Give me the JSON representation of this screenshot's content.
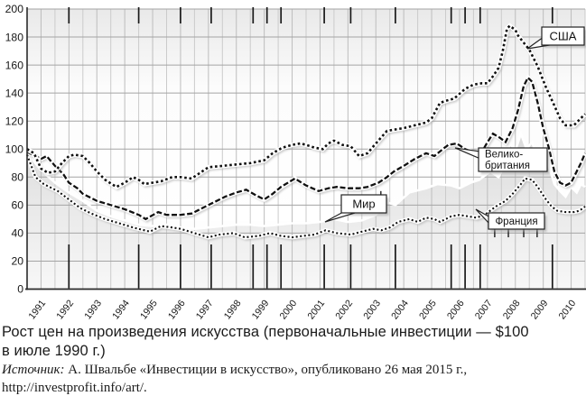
{
  "page": {
    "background": "#ffffff"
  },
  "caption": {
    "line1": "Рост цен на произведения искусства (первоначальные инвестиции — $100",
    "line2": "в июле 1990 г.)"
  },
  "source": {
    "label": "Источник:",
    "text": " А. Швальбе «Инвестиции в искусство», опубликовано 26 мая 2015 г.,",
    "url": "http://investprofit.info/art/."
  },
  "chart_data": {
    "type": "line",
    "title": "Рост цен на произведения искусства (первоначальные инвестиции — $100 в июле 1990 г.)",
    "xlabel": "",
    "ylabel": "",
    "x_unit": "year",
    "xlim": [
      1990.5,
      2010.5
    ],
    "ylim": [
      0,
      200
    ],
    "grid": "on",
    "legend_position": "inline-callouts",
    "y_ticks": [
      0,
      20,
      40,
      60,
      80,
      100,
      120,
      140,
      160,
      180,
      200
    ],
    "x_tick_labels": [
      "1991",
      "1992",
      "1993",
      "1994",
      "1995",
      "1996",
      "1997",
      "1998",
      "1999",
      "2000",
      "2001",
      "2002",
      "2003",
      "2004",
      "2005",
      "2006",
      "2007",
      "2008",
      "2009",
      "2010"
    ],
    "colors": {
      "line": "#111111",
      "line_casing": "#ffffff",
      "shadow": "#9a9a9a",
      "area_fill_top": "#d9d9d9",
      "area_fill_bottom": "#f8f8f8",
      "grid_minor": "#cbcbcb",
      "grid_year": "#bdbdbd",
      "grid_horizontal": "#a4a4a4",
      "axis": "#2a2a2a",
      "plot_bg_top": "#e9e9e9",
      "plot_bg_mid": "#fcfcfc",
      "plot_bg_bottom": "#f2f2f2",
      "callout_bg": "#ffffff",
      "callout_border": "#222222",
      "tick_marker": "#1a1a1a"
    },
    "event_marker_years": [
      1992.0,
      1994.5,
      1996.0,
      1997.1,
      1998.6,
      1999.1,
      1999.6,
      2001.15,
      2002.1,
      2003.7,
      2005.7,
      2006.2,
      2006.74,
      2009.33
    ],
    "short_marker_segments": [
      {
        "year": 2003.18,
        "from": 70,
        "to": 63
      },
      {
        "year": 2007.26,
        "from": 48,
        "to": 37
      },
      {
        "year": 2007.75,
        "from": 48,
        "to": 37
      },
      {
        "year": 2008.3,
        "from": 48,
        "to": 37
      },
      {
        "year": 2008.78,
        "from": 48,
        "to": 37
      }
    ],
    "series": [
      {
        "id": "world",
        "name": "Мир",
        "style": "area",
        "label_lines": [
          "Мир"
        ],
        "points": [
          [
            1990.5,
            97
          ],
          [
            1991,
            85
          ],
          [
            1991.5,
            76
          ],
          [
            1992,
            69
          ],
          [
            1992.5,
            63
          ],
          [
            1993,
            56
          ],
          [
            1993.5,
            52
          ],
          [
            1994,
            49
          ],
          [
            1994.5,
            46
          ],
          [
            1995,
            45
          ],
          [
            1995.5,
            46
          ],
          [
            1996,
            44
          ],
          [
            1996.5,
            43
          ],
          [
            1997,
            44
          ],
          [
            1997.5,
            45
          ],
          [
            1998,
            46
          ],
          [
            1998.5,
            46
          ],
          [
            1999,
            45
          ],
          [
            1999.5,
            46
          ],
          [
            2000,
            47
          ],
          [
            2000.5,
            47
          ],
          [
            2001,
            48
          ],
          [
            2001.5,
            50
          ],
          [
            2002,
            48
          ],
          [
            2002.5,
            49
          ],
          [
            2003,
            53
          ],
          [
            2003.2,
            58
          ],
          [
            2003.4,
            62
          ],
          [
            2003.7,
            60
          ],
          [
            2004.2,
            69
          ],
          [
            2004.8,
            72
          ],
          [
            2005.2,
            75
          ],
          [
            2005.7,
            74
          ],
          [
            2006,
            72
          ],
          [
            2006.4,
            76
          ],
          [
            2006.7,
            78
          ],
          [
            2007.1,
            84
          ],
          [
            2007.4,
            80
          ],
          [
            2007.65,
            90
          ],
          [
            2007.8,
            104
          ],
          [
            2008,
            99
          ],
          [
            2008.2,
            111
          ],
          [
            2008.4,
            100
          ],
          [
            2008.6,
            105
          ],
          [
            2008.8,
            92
          ],
          [
            2009,
            97
          ],
          [
            2009.2,
            88
          ],
          [
            2009.4,
            75
          ],
          [
            2009.6,
            70
          ],
          [
            2009.8,
            66
          ],
          [
            2010,
            73
          ],
          [
            2010.2,
            69
          ],
          [
            2010.35,
            75
          ],
          [
            2010.5,
            73
          ]
        ]
      },
      {
        "id": "france",
        "name": "Франция",
        "style": "dotted",
        "label_lines": [
          "Франция"
        ],
        "points": [
          [
            1990.5,
            96
          ],
          [
            1990.8,
            80
          ],
          [
            1991.1,
            75
          ],
          [
            1991.6,
            70
          ],
          [
            1992,
            64
          ],
          [
            1992.4,
            58
          ],
          [
            1992.8,
            54
          ],
          [
            1993.3,
            50
          ],
          [
            1993.8,
            47
          ],
          [
            1994.3,
            44
          ],
          [
            1994.9,
            41
          ],
          [
            1995.3,
            45
          ],
          [
            1995.7,
            44
          ],
          [
            1996,
            43
          ],
          [
            1996.5,
            40
          ],
          [
            1997,
            37
          ],
          [
            1997.4,
            39
          ],
          [
            1997.9,
            40
          ],
          [
            1998.3,
            37
          ],
          [
            1998.8,
            38
          ],
          [
            1999.2,
            40
          ],
          [
            1999.6,
            38
          ],
          [
            2000,
            37
          ],
          [
            2000.4,
            38
          ],
          [
            2000.8,
            39
          ],
          [
            2001.2,
            42
          ],
          [
            2001.6,
            40
          ],
          [
            2002.1,
            39
          ],
          [
            2002.5,
            41
          ],
          [
            2002.9,
            43
          ],
          [
            2003.2,
            42
          ],
          [
            2003.5,
            44
          ],
          [
            2003.8,
            48
          ],
          [
            2004.2,
            50
          ],
          [
            2004.5,
            48
          ],
          [
            2004.8,
            51
          ],
          [
            2005.1,
            50
          ],
          [
            2005.3,
            48
          ],
          [
            2005.7,
            52
          ],
          [
            2006,
            53
          ],
          [
            2006.3,
            52
          ],
          [
            2006.6,
            51
          ],
          [
            2006.9,
            53
          ],
          [
            2007.3,
            59
          ],
          [
            2007.65,
            63
          ],
          [
            2007.9,
            68
          ],
          [
            2008.2,
            75
          ],
          [
            2008.35,
            79
          ],
          [
            2008.6,
            78
          ],
          [
            2008.8,
            73
          ],
          [
            2009.1,
            64
          ],
          [
            2009.3,
            59
          ],
          [
            2009.5,
            56
          ],
          [
            2009.8,
            55
          ],
          [
            2010.1,
            55
          ],
          [
            2010.3,
            56
          ],
          [
            2010.5,
            59
          ]
        ]
      },
      {
        "id": "uk",
        "name": "Великобритания",
        "style": "dashed",
        "label_lines": [
          "Велико-",
          "британия"
        ],
        "points": [
          [
            1990.5,
            98
          ],
          [
            1990.7,
            96
          ],
          [
            1991,
            93
          ],
          [
            1991.2,
            95
          ],
          [
            1991.5,
            88
          ],
          [
            1991.8,
            82
          ],
          [
            1992,
            76
          ],
          [
            1992.3,
            72
          ],
          [
            1992.5,
            68
          ],
          [
            1993,
            63
          ],
          [
            1993.5,
            60
          ],
          [
            1994,
            57
          ],
          [
            1994.5,
            53
          ],
          [
            1994.75,
            50
          ],
          [
            1995.2,
            55
          ],
          [
            1995.5,
            53
          ],
          [
            1996,
            53
          ],
          [
            1996.4,
            54
          ],
          [
            1997,
            60
          ],
          [
            1997.3,
            63
          ],
          [
            1997.6,
            66
          ],
          [
            1998,
            69
          ],
          [
            1998.35,
            71
          ],
          [
            1998.7,
            67
          ],
          [
            1999,
            64
          ],
          [
            1999.3,
            68
          ],
          [
            1999.6,
            73
          ],
          [
            2000.1,
            79
          ],
          [
            2000.5,
            74
          ],
          [
            2000.95,
            70
          ],
          [
            2001.3,
            72
          ],
          [
            2001.6,
            73
          ],
          [
            2002,
            72
          ],
          [
            2002.4,
            72
          ],
          [
            2002.7,
            73
          ],
          [
            2003.1,
            76
          ],
          [
            2003.4,
            80
          ],
          [
            2003.65,
            84
          ],
          [
            2004,
            88
          ],
          [
            2004.4,
            93
          ],
          [
            2004.8,
            97
          ],
          [
            2005.1,
            95
          ],
          [
            2005.4,
            100
          ],
          [
            2005.6,
            103
          ],
          [
            2005.9,
            104
          ],
          [
            2006.2,
            100
          ],
          [
            2006.6,
            97
          ],
          [
            2006.8,
            98
          ],
          [
            2007,
            105
          ],
          [
            2007.2,
            111
          ],
          [
            2007.45,
            108
          ],
          [
            2007.65,
            105
          ],
          [
            2007.9,
            115
          ],
          [
            2008.1,
            128
          ],
          [
            2008.3,
            145
          ],
          [
            2008.45,
            151
          ],
          [
            2008.6,
            148
          ],
          [
            2008.8,
            133
          ],
          [
            2009,
            115
          ],
          [
            2009.2,
            101
          ],
          [
            2009.4,
            84
          ],
          [
            2009.6,
            76
          ],
          [
            2009.8,
            74
          ],
          [
            2010,
            76
          ],
          [
            2010.2,
            84
          ],
          [
            2010.35,
            90
          ],
          [
            2010.5,
            97
          ]
        ]
      },
      {
        "id": "usa",
        "name": "США",
        "style": "bold-dotted",
        "label_lines": [
          "США"
        ],
        "points": [
          [
            1990.5,
            100
          ],
          [
            1990.75,
            97
          ],
          [
            1991,
            86
          ],
          [
            1991.25,
            83
          ],
          [
            1991.5,
            84
          ],
          [
            1991.75,
            90
          ],
          [
            1992,
            95
          ],
          [
            1992.2,
            96
          ],
          [
            1992.5,
            95
          ],
          [
            1992.75,
            90
          ],
          [
            1993,
            84
          ],
          [
            1993.3,
            78
          ],
          [
            1993.7,
            73
          ],
          [
            1994,
            76
          ],
          [
            1994.3,
            80
          ],
          [
            1994.5,
            78
          ],
          [
            1994.7,
            75
          ],
          [
            1995,
            76
          ],
          [
            1995.3,
            77
          ],
          [
            1995.7,
            80
          ],
          [
            1996,
            80
          ],
          [
            1996.4,
            79
          ],
          [
            1996.7,
            83
          ],
          [
            1997,
            87
          ],
          [
            1997.5,
            88
          ],
          [
            1998,
            89
          ],
          [
            1998.5,
            90
          ],
          [
            1999,
            92
          ],
          [
            1999.3,
            97
          ],
          [
            1999.65,
            101
          ],
          [
            2000,
            103
          ],
          [
            2000.3,
            104
          ],
          [
            2000.5,
            103
          ],
          [
            2000.8,
            101
          ],
          [
            2001.1,
            100
          ],
          [
            2001.3,
            104
          ],
          [
            2001.5,
            106
          ],
          [
            2001.8,
            103
          ],
          [
            2002.1,
            102
          ],
          [
            2002.4,
            95
          ],
          [
            2002.7,
            97
          ],
          [
            2003,
            104
          ],
          [
            2003.4,
            113
          ],
          [
            2003.7,
            114
          ],
          [
            2004,
            115
          ],
          [
            2004.4,
            117
          ],
          [
            2004.8,
            119
          ],
          [
            2005,
            122
          ],
          [
            2005.3,
            133
          ],
          [
            2005.6,
            135
          ],
          [
            2005.8,
            136
          ],
          [
            2006.2,
            143
          ],
          [
            2006.5,
            146
          ],
          [
            2006.8,
            147
          ],
          [
            2007,
            147
          ],
          [
            2007.2,
            152
          ],
          [
            2007.4,
            158
          ],
          [
            2007.55,
            170
          ],
          [
            2007.7,
            186
          ],
          [
            2007.8,
            188
          ],
          [
            2008,
            185
          ],
          [
            2008.1,
            181
          ],
          [
            2008.3,
            176
          ],
          [
            2008.5,
            171
          ],
          [
            2008.8,
            159
          ],
          [
            2009.1,
            144
          ],
          [
            2009.4,
            131
          ],
          [
            2009.6,
            122
          ],
          [
            2009.8,
            117
          ],
          [
            2010.1,
            117
          ],
          [
            2010.4,
            123
          ],
          [
            2010.5,
            125
          ]
        ]
      }
    ]
  }
}
